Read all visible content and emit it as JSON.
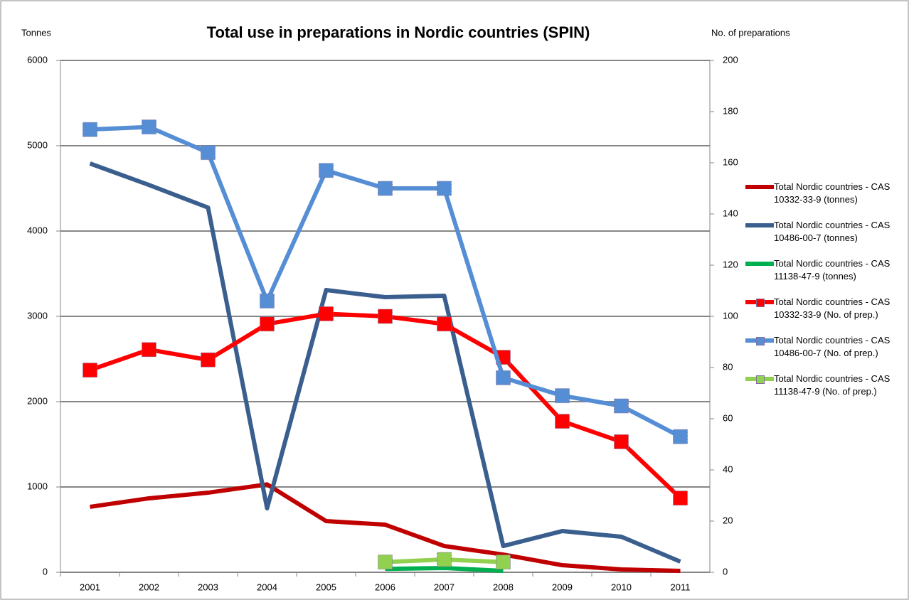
{
  "chart_data": {
    "type": "line",
    "title": "Total use in preparations in Nordic countries (SPIN)",
    "y_label": "Tonnes",
    "y2_label": "No. of preparations",
    "categories": [
      "2001",
      "2002",
      "2003",
      "2004",
      "2005",
      "2006",
      "2007",
      "2008",
      "2009",
      "2010",
      "2011"
    ],
    "ylim": [
      0,
      6000
    ],
    "yticks": [
      0,
      1000,
      2000,
      3000,
      4000,
      5000,
      6000
    ],
    "y2lim": [
      0,
      200
    ],
    "y2ticks": [
      0,
      20,
      40,
      60,
      80,
      100,
      120,
      140,
      160,
      180,
      200
    ],
    "grid": true,
    "legend": "right",
    "series": [
      {
        "name": "Total Nordic countries - CAS 10332-33-9 (tonnes)",
        "color": "#c00000",
        "axis": "y",
        "values": [
          767,
          867,
          933,
          1030,
          600,
          558,
          308,
          208,
          83,
          33,
          17
        ]
      },
      {
        "name": "Total Nordic countries - CAS 10486-00-7 (tonnes)",
        "color": "#3a5f8f",
        "axis": "y",
        "values": [
          4792,
          4540,
          4275,
          750,
          3308,
          3225,
          3242,
          308,
          483,
          417,
          125
        ]
      },
      {
        "name": "Total Nordic countries - CAS 11138-47-9 (tonnes)",
        "color": "#00b050",
        "axis": "y",
        "values": [
          null,
          null,
          null,
          null,
          null,
          40,
          50,
          17,
          null,
          null,
          null
        ]
      },
      {
        "name": "Total Nordic countries - CAS 10332-33-9 (No. of prep.)",
        "color": "#ff0000",
        "axis": "y2",
        "marker": "square",
        "values": [
          79,
          87,
          83,
          97,
          101,
          100,
          97,
          84,
          59,
          51,
          29
        ]
      },
      {
        "name": "Total Nordic countries - CAS 10486-00-7 (No. of prep.)",
        "color": "#558ed5",
        "axis": "y2",
        "marker": "square",
        "values": [
          173,
          174,
          164,
          106,
          157,
          150,
          150,
          76,
          69,
          65,
          53
        ]
      },
      {
        "name": "Total Nordic countries - CAS 11138-47-9 (No. of prep.)",
        "color": "#92d050",
        "axis": "y2",
        "marker": "square",
        "values": [
          null,
          null,
          null,
          null,
          null,
          4,
          5,
          4,
          null,
          null,
          null
        ]
      }
    ]
  }
}
